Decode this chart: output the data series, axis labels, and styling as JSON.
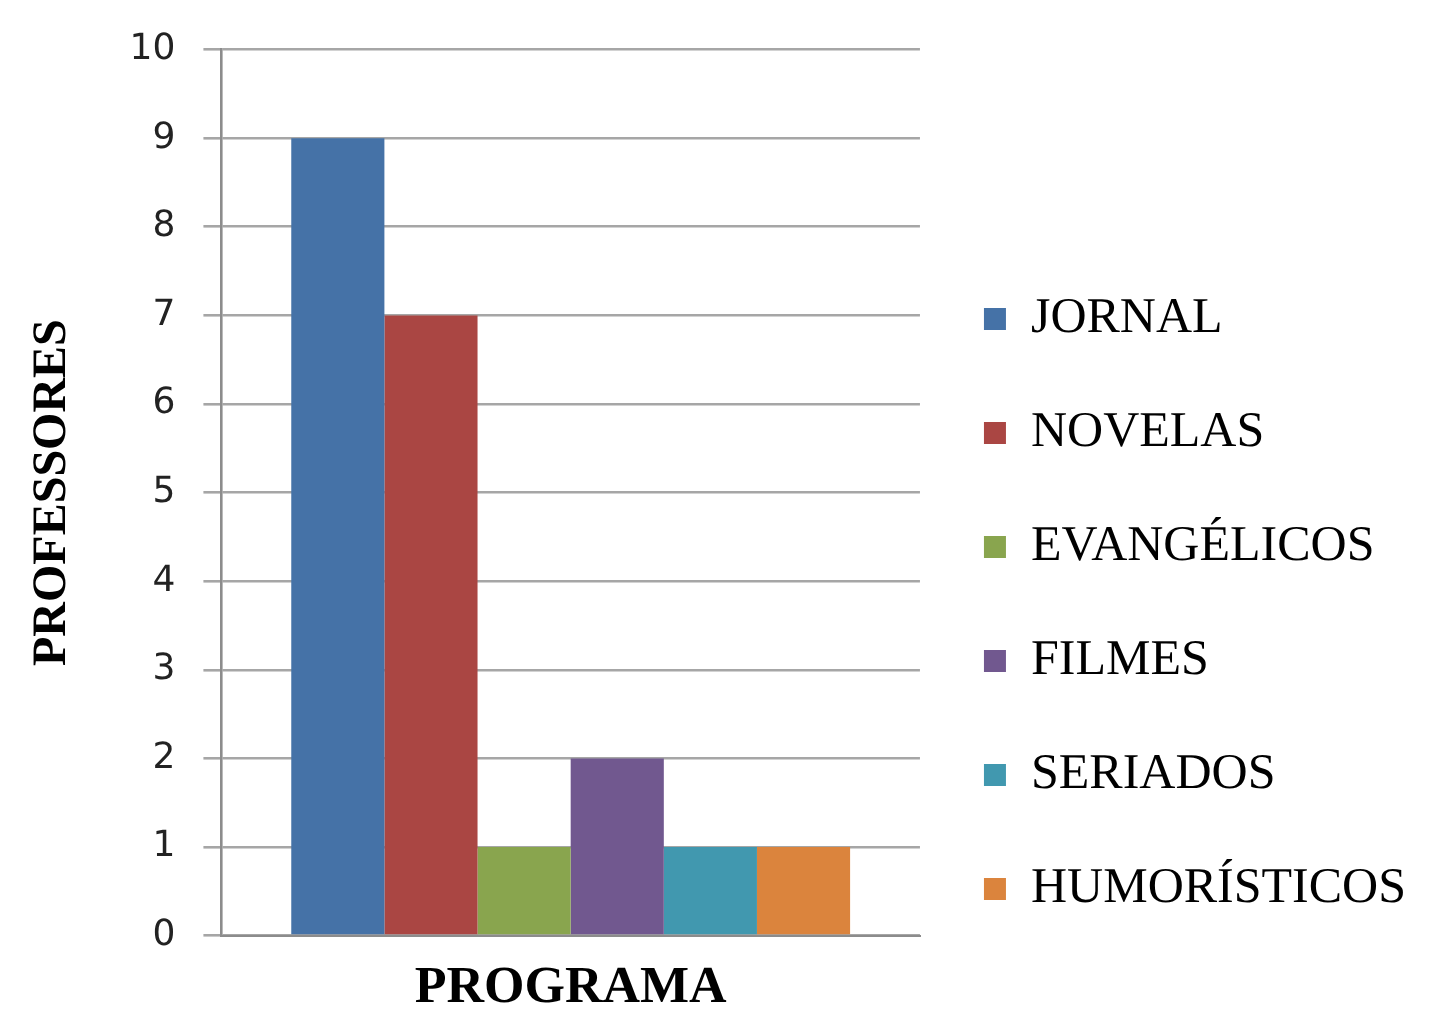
{
  "chart_data": {
    "type": "bar",
    "xlabel": "PROGRAMA",
    "ylabel": "PROFESSORES",
    "categories": [
      null
    ],
    "series": [
      {
        "name": "JORNAL",
        "color": "#4572a7",
        "values": [
          9
        ]
      },
      {
        "name": "NOVELAS",
        "color": "#aa4643",
        "values": [
          7
        ]
      },
      {
        "name": "EVANGÉLICOS",
        "color": "#89a54e",
        "values": [
          1
        ]
      },
      {
        "name": "FILMES",
        "color": "#71588f",
        "values": [
          2
        ]
      },
      {
        "name": "SERIADOS",
        "color": "#4198af",
        "values": [
          1
        ]
      },
      {
        "name": "HUMORÍSTICOS",
        "color": "#db843d",
        "values": [
          1
        ]
      }
    ],
    "ylim": [
      0,
      10
    ],
    "yticks": [
      0,
      1,
      2,
      3,
      4,
      5,
      6,
      7,
      8,
      9,
      10
    ],
    "grid": "y",
    "legend": "right"
  }
}
